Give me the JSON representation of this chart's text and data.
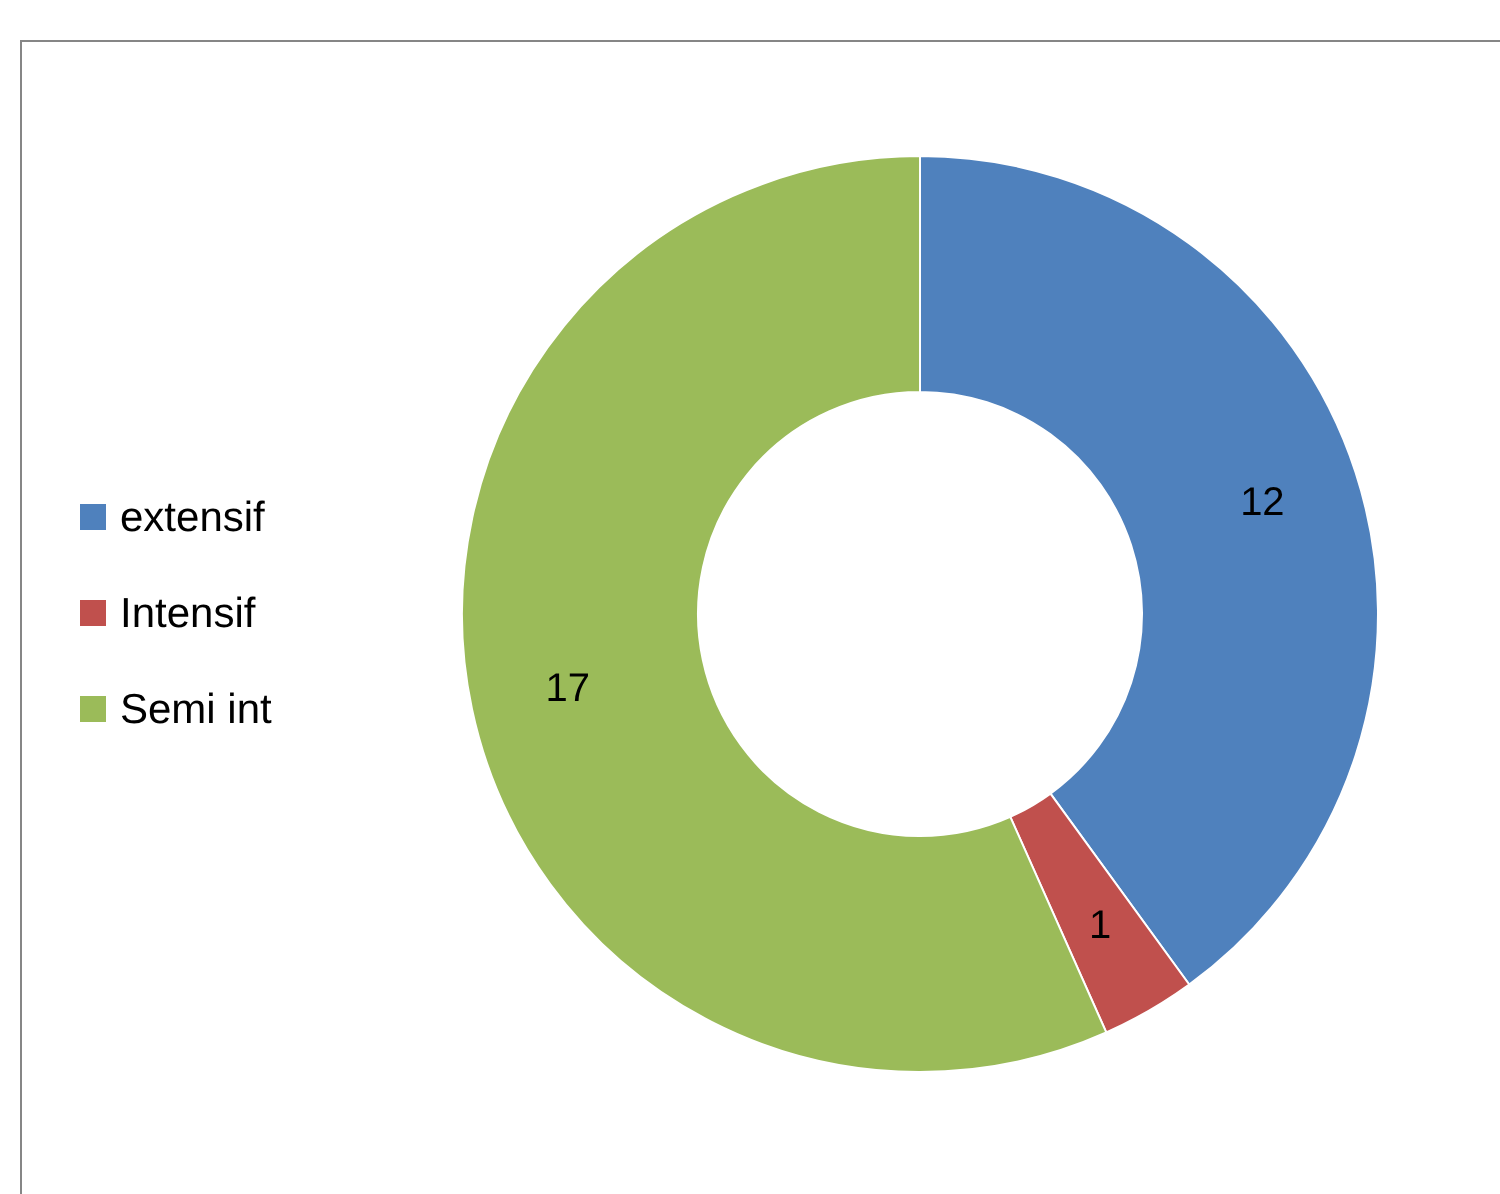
{
  "chart_data": {
    "type": "donut",
    "categories": [
      "extensif",
      "Intensif",
      "Semi int"
    ],
    "values": [
      12,
      1,
      17
    ],
    "colors": [
      "#4f81bd",
      "#c0504d",
      "#9bbb59"
    ],
    "data_labels": true,
    "legend": "left"
  }
}
